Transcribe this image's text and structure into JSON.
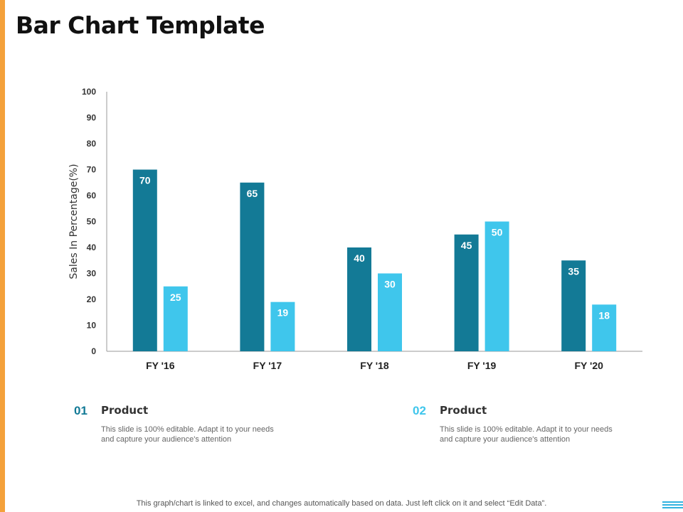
{
  "page": {
    "title": "Bar Chart Template",
    "footer_note": "This graph/chart is linked to excel, and changes automatically based on data. Just left click on it and select “Edit Data”.",
    "accent_color": "#f4a13b"
  },
  "legend": [
    {
      "number": "01",
      "heading": "Product",
      "description": "This slide is 100% editable. Adapt it to your needs and capture your audience's attention",
      "color": "#137a96"
    },
    {
      "number": "02",
      "heading": "Product",
      "description": "This slide is 100% editable. Adapt it to your needs and capture your audience's attention",
      "color": "#3fc6ec"
    }
  ],
  "chart_data": {
    "type": "bar",
    "title": "",
    "xlabel": "",
    "ylabel": "Sales In Percentage(%)",
    "categories": [
      "FY '16",
      "FY '17",
      "FY '18",
      "FY '19",
      "FY '20"
    ],
    "series": [
      {
        "name": "Product 01",
        "values": [
          70,
          65,
          40,
          45,
          35
        ],
        "color": "#137a96"
      },
      {
        "name": "Product 02",
        "values": [
          25,
          19,
          30,
          50,
          18
        ],
        "color": "#3fc6ec"
      }
    ],
    "ylim": [
      0,
      100
    ],
    "yticks": [
      0,
      10,
      20,
      30,
      40,
      50,
      60,
      70,
      80,
      90,
      100
    ],
    "grid": false,
    "data_labels": true
  }
}
